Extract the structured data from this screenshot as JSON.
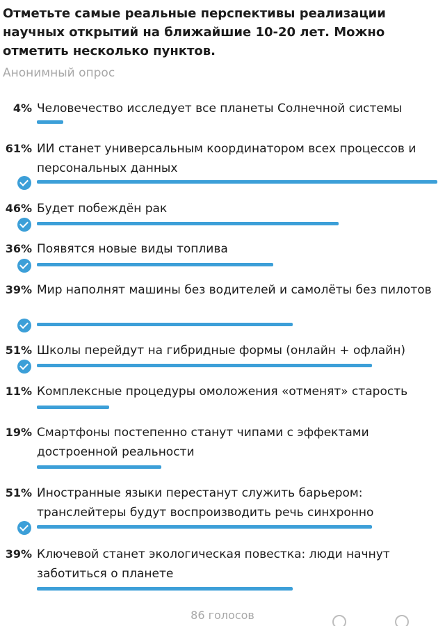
{
  "poll": {
    "question": "Отметьте самые реальные перспективы реализации научных открытий на ближайшие 10-20 лет. Можно отметить несколько пунктов.",
    "type_label": "Анонимный опрос",
    "total_votes": "86 голосов",
    "accent_color": "#3c9fd8",
    "options": [
      {
        "percent_label": "4%",
        "percent": 4,
        "text": "Человечество исследует все планеты Солнечной системы",
        "selected": false
      },
      {
        "percent_label": "61%",
        "percent": 61,
        "text": "ИИ станет универсальным координатором всех процессов и персональных данных",
        "selected": true
      },
      {
        "percent_label": "46%",
        "percent": 46,
        "text": "Будет побеждён рак",
        "selected": true
      },
      {
        "percent_label": "36%",
        "percent": 36,
        "text": "Появятся новые виды топлива",
        "selected": true
      },
      {
        "percent_label": "39%",
        "percent": 39,
        "text": "Мир наполнят машины без водителей и самолёты без пилотов",
        "selected": true
      },
      {
        "percent_label": "51%",
        "percent": 51,
        "text": "Школы перейдут на гибридные формы (онлайн + офлайн)",
        "selected": true
      },
      {
        "percent_label": "11%",
        "percent": 11,
        "text": "Комплексные процедуры омоложения «отменят» старость",
        "selected": false
      },
      {
        "percent_label": "19%",
        "percent": 19,
        "text": "Смартфоны постепенно станут чипами с эффектами достроенной реальности",
        "selected": false
      },
      {
        "percent_label": "51%",
        "percent": 51,
        "text": "Иностранные языки перестанут служить барьером: транслейтеры будут воспроизводить речь синхронно",
        "selected": true
      },
      {
        "percent_label": "39%",
        "percent": 39,
        "text": "Ключевой станет экологическая повестка: люди начнут заботиться о планете",
        "selected": false
      }
    ]
  }
}
